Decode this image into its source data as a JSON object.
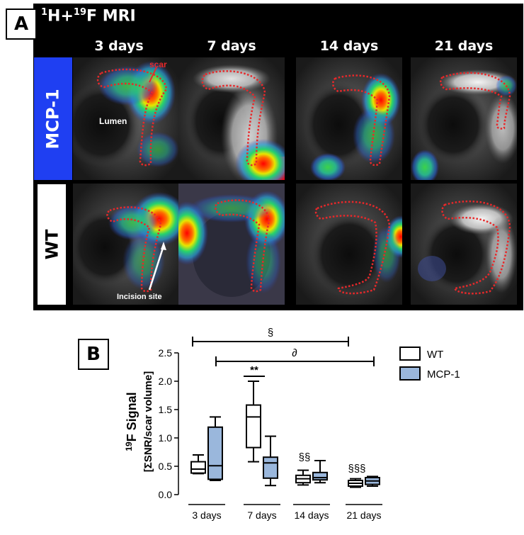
{
  "panel_a": {
    "label": "A",
    "title_parts": {
      "h_mass": "1",
      "h_sym": "H+",
      "f_mass": "19",
      "f_rest": "F MRI"
    },
    "columns": [
      "3 days",
      "7 days",
      "14 days",
      "21 days"
    ],
    "rows": [
      "MCP-1",
      "WT"
    ],
    "annotations": {
      "scar": "scar",
      "lumen": "Lumen",
      "incision": "Incision site"
    },
    "colors": {
      "background": "#000000",
      "mcp1_label_bg": "#1f3ff2",
      "scar_outline": "#e8282a"
    }
  },
  "panel_b": {
    "label": "B",
    "ylabel_line1_mass": "19",
    "ylabel_line1_rest": "F Signal",
    "ylabel_line2": "[ΣSNR/scar volume]",
    "legend": [
      "WT",
      "MCP-1"
    ],
    "sig_top": "§",
    "sig_second": "∂",
    "sig_pair": "**",
    "sig_14": "§§",
    "sig_21": "§§§"
  },
  "chart_data": {
    "type": "box",
    "categories": [
      "3 days",
      "7 days",
      "14 days",
      "21 days"
    ],
    "ylim": [
      0,
      2.5
    ],
    "yticks": [
      "0.0",
      "0.5",
      "1.0",
      "1.5",
      "2.0",
      "2.5"
    ],
    "series": [
      {
        "name": "WT",
        "color": "#ffffff",
        "boxes": [
          {
            "min": 0.37,
            "q1": 0.38,
            "median": 0.45,
            "q3": 0.58,
            "max": 0.7
          },
          {
            "min": 0.58,
            "q1": 0.83,
            "median": 1.37,
            "q3": 1.58,
            "max": 2.0
          },
          {
            "min": 0.17,
            "q1": 0.21,
            "median": 0.28,
            "q3": 0.34,
            "max": 0.43
          },
          {
            "min": 0.13,
            "q1": 0.15,
            "median": 0.2,
            "q3": 0.25,
            "max": 0.28
          }
        ]
      },
      {
        "name": "MCP-1",
        "color": "#9ab7dc",
        "boxes": [
          {
            "min": 0.25,
            "q1": 0.27,
            "median": 0.51,
            "q3": 1.19,
            "max": 1.37
          },
          {
            "min": 0.16,
            "q1": 0.29,
            "median": 0.56,
            "q3": 0.66,
            "max": 1.03
          },
          {
            "min": 0.21,
            "q1": 0.26,
            "median": 0.3,
            "q3": 0.39,
            "max": 0.6
          },
          {
            "min": 0.15,
            "q1": 0.18,
            "median": 0.24,
            "q3": 0.3,
            "max": 0.32
          }
        ]
      }
    ]
  }
}
